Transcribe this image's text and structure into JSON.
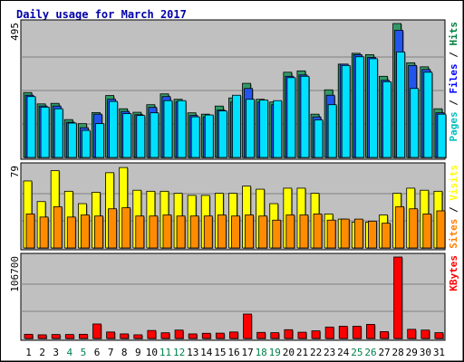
{
  "chart_data": {
    "type": "bar",
    "title": "Daily usage for March 2017",
    "categories": [
      "1",
      "2",
      "3",
      "4",
      "5",
      "6",
      "7",
      "8",
      "9",
      "10",
      "11",
      "12",
      "13",
      "14",
      "15",
      "16",
      "17",
      "18",
      "19",
      "20",
      "21",
      "22",
      "23",
      "24",
      "25",
      "26",
      "27",
      "28",
      "29",
      "30",
      "31"
    ],
    "weekend_days": [
      "4",
      "5",
      "11",
      "12",
      "18",
      "19",
      "25",
      "26"
    ],
    "panels": [
      {
        "id": "hits",
        "ymax_label": "495",
        "ylim": [
          0,
          495
        ],
        "legend": [
          "Pages",
          "Files",
          "Hits"
        ],
        "legend_colors": [
          "#00c0c0",
          "#0000ff",
          "#008040"
        ],
        "series": [
          {
            "name": "Hits",
            "color": "#339966",
            "values": [
              240,
              198,
              200,
              140,
              125,
              166,
              229,
              180,
              167,
              195,
              235,
              215,
              165,
              160,
              190,
              220,
              274,
              215,
              205,
              315,
              320,
              160,
              250,
              345,
              385,
              380,
              300,
              495,
              350,
              335,
              180
            ]
          },
          {
            "name": "Files",
            "color": "#2255ee",
            "values": [
              230,
              190,
              190,
              130,
              110,
              160,
              215,
              170,
              158,
              185,
              225,
              205,
              155,
              150,
              175,
              205,
              255,
              205,
              195,
              300,
              305,
              150,
              230,
              345,
              380,
              370,
              285,
              470,
              340,
              325,
              165
            ]
          },
          {
            "name": "Pages",
            "color": "#00e1ff",
            "values": [
              225,
              186,
              180,
              127,
              100,
              125,
              207,
              162,
              155,
              165,
              210,
              210,
              150,
              157,
              172,
              230,
              215,
              212,
              210,
              295,
              300,
              139,
              195,
              340,
              372,
              365,
              280,
              390,
              255,
              315,
              160
            ]
          }
        ]
      },
      {
        "id": "visits",
        "ymax_label": "79",
        "ylim": [
          0,
          79
        ],
        "legend": [
          "Sites",
          "Visits"
        ],
        "legend_colors": [
          "#ff8000",
          "#ffff00"
        ],
        "series": [
          {
            "name": "Visits",
            "color": "#ffff00",
            "values": [
              65,
              45,
              75,
              55,
              43,
              54,
              73,
              78,
              56,
              55,
              55,
              53,
              51,
              51,
              53,
              53,
              60,
              57,
              43,
              58,
              58,
              53,
              33,
              28,
              25,
              25,
              32,
              53,
              58,
              56,
              55
            ]
          },
          {
            "name": "Sites",
            "color": "#ff8c00",
            "values": [
              33,
              30,
              40,
              30,
              32,
              31,
              38,
              39,
              31,
              31,
              32,
              31,
              31,
              31,
              32,
              31,
              32,
              31,
              27,
              32,
              32,
              33,
              27,
              28,
              28,
              26,
              24,
              40,
              38,
              33,
              36
            ]
          }
        ]
      },
      {
        "id": "kbytes",
        "ymax_label": "106700",
        "ylim": [
          0,
          106700
        ],
        "legend": [
          "KBytes"
        ],
        "legend_colors": [
          "#ff0000"
        ],
        "series": [
          {
            "name": "KBytes",
            "color": "#ff0000",
            "values": [
              5500,
              4800,
              5200,
              5200,
              5500,
              19000,
              8500,
              6000,
              4800,
              10500,
              7500,
              11000,
              6000,
              6800,
              7000,
              8500,
              32000,
              8000,
              7600,
              11500,
              8200,
              10000,
              15000,
              16000,
              16000,
              18500,
              9000,
              106700,
              12000,
              11000,
              7600
            ]
          }
        ]
      }
    ]
  }
}
